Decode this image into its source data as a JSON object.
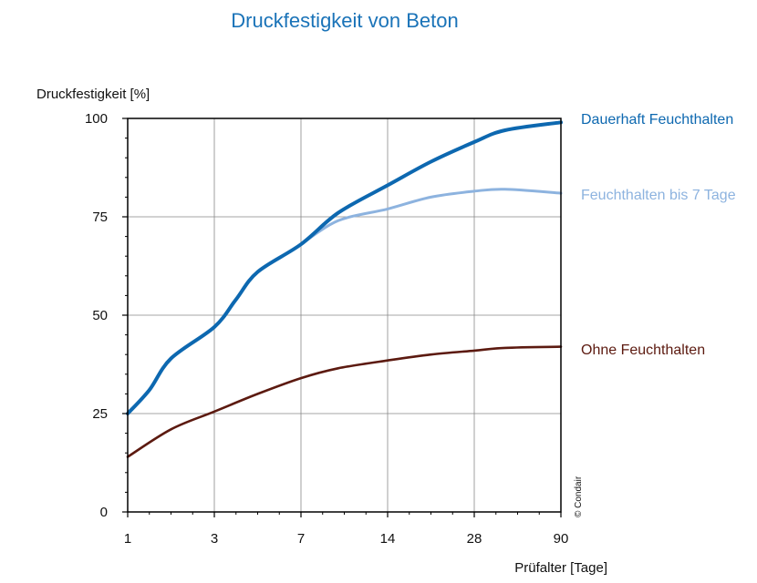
{
  "chart_data": {
    "type": "line",
    "title": "Druckfestigkeit von Beton",
    "ylabel": "Druckfestigkeit [%]",
    "xlabel": "Prüfalter [Tage]",
    "x_ticks": [
      "1",
      "3",
      "7",
      "14",
      "28",
      "90"
    ],
    "y_ticks": [
      "0",
      "25",
      "50",
      "75",
      "100"
    ],
    "ylim": [
      0,
      100
    ],
    "grid": true,
    "legend": "right",
    "credit": "© Condair",
    "series": [
      {
        "name": "Dauerhaft Feuchthalten",
        "color": "#0d68b0",
        "x": [
          1,
          1.5,
          2,
          3,
          4,
          5,
          7,
          10,
          14,
          21,
          28,
          50,
          90
        ],
        "y": [
          25,
          31,
          39,
          47,
          54,
          61,
          68,
          76,
          83,
          89,
          94,
          97,
          99
        ]
      },
      {
        "name": "Feuchthalten bis 7 Tage",
        "color": "#8db3df",
        "x": [
          7,
          10,
          14,
          21,
          28,
          50,
          90
        ],
        "y": [
          68,
          74,
          77,
          80,
          81.5,
          82,
          81
        ]
      },
      {
        "name": "Ohne Feuchthalten",
        "color": "#5c1a10",
        "x": [
          1,
          2,
          3,
          5,
          7,
          10,
          14,
          21,
          28,
          50,
          90
        ],
        "y": [
          14,
          21,
          25.5,
          30,
          34,
          36.5,
          38.5,
          40,
          41,
          41.7,
          42
        ]
      }
    ]
  }
}
